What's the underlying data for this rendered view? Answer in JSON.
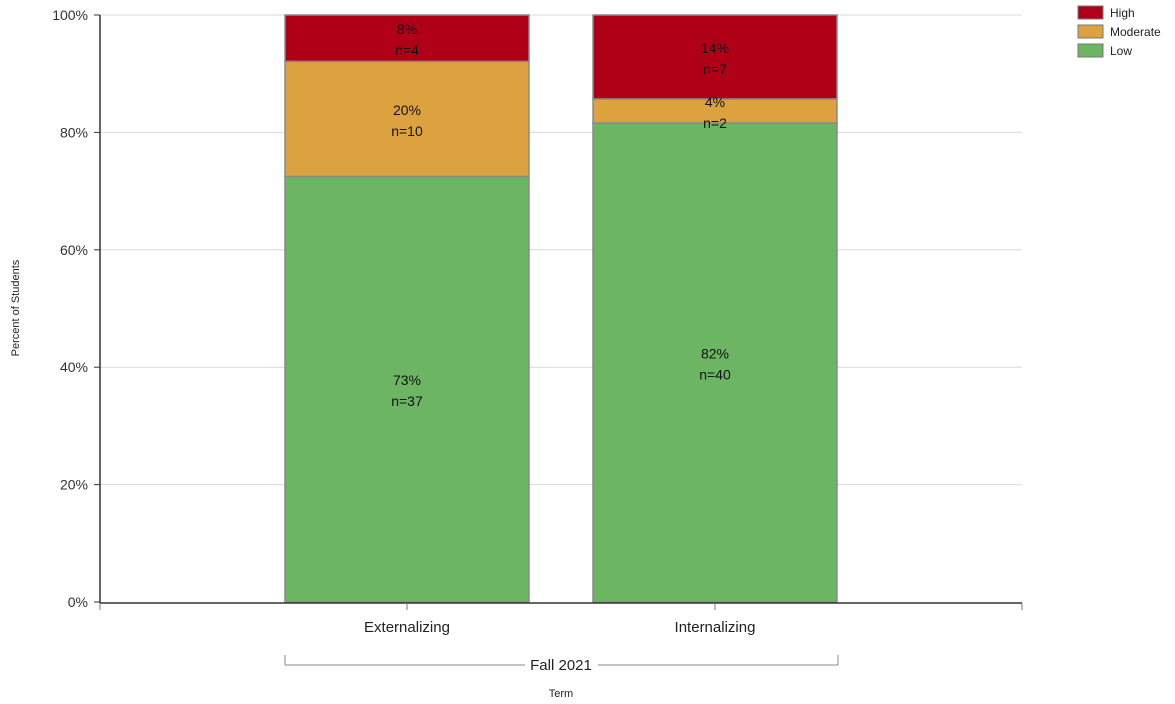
{
  "chart_data": {
    "type": "bar",
    "stacked": true,
    "categories": [
      "Externalizing",
      "Internalizing"
    ],
    "group_label": "Fall 2021",
    "xlabel": "Term",
    "ylabel": "Percent of Students",
    "ylim": [
      0,
      100
    ],
    "y_ticks": [
      0,
      20,
      40,
      60,
      80,
      100
    ],
    "y_tick_suffix": "%",
    "grid": true,
    "legend_position": "top-right",
    "series": [
      {
        "name": "Low",
        "color": "#6bb563",
        "values": [
          72.5,
          81.6
        ],
        "labels": [
          "73%",
          "82%"
        ],
        "counts": [
          "n=37",
          "n=40"
        ]
      },
      {
        "name": "Moderate",
        "color": "#dca23f",
        "values": [
          19.6,
          4.1
        ],
        "labels": [
          "20%",
          "4%"
        ],
        "counts": [
          "n=10",
          "n=2"
        ]
      },
      {
        "name": "High",
        "color": "#b00018",
        "values": [
          7.9,
          14.3
        ],
        "labels": [
          "8%",
          "14%"
        ],
        "counts": [
          "n=4",
          "n=7"
        ]
      }
    ],
    "legend_order": [
      "High",
      "Moderate",
      "Low"
    ]
  }
}
